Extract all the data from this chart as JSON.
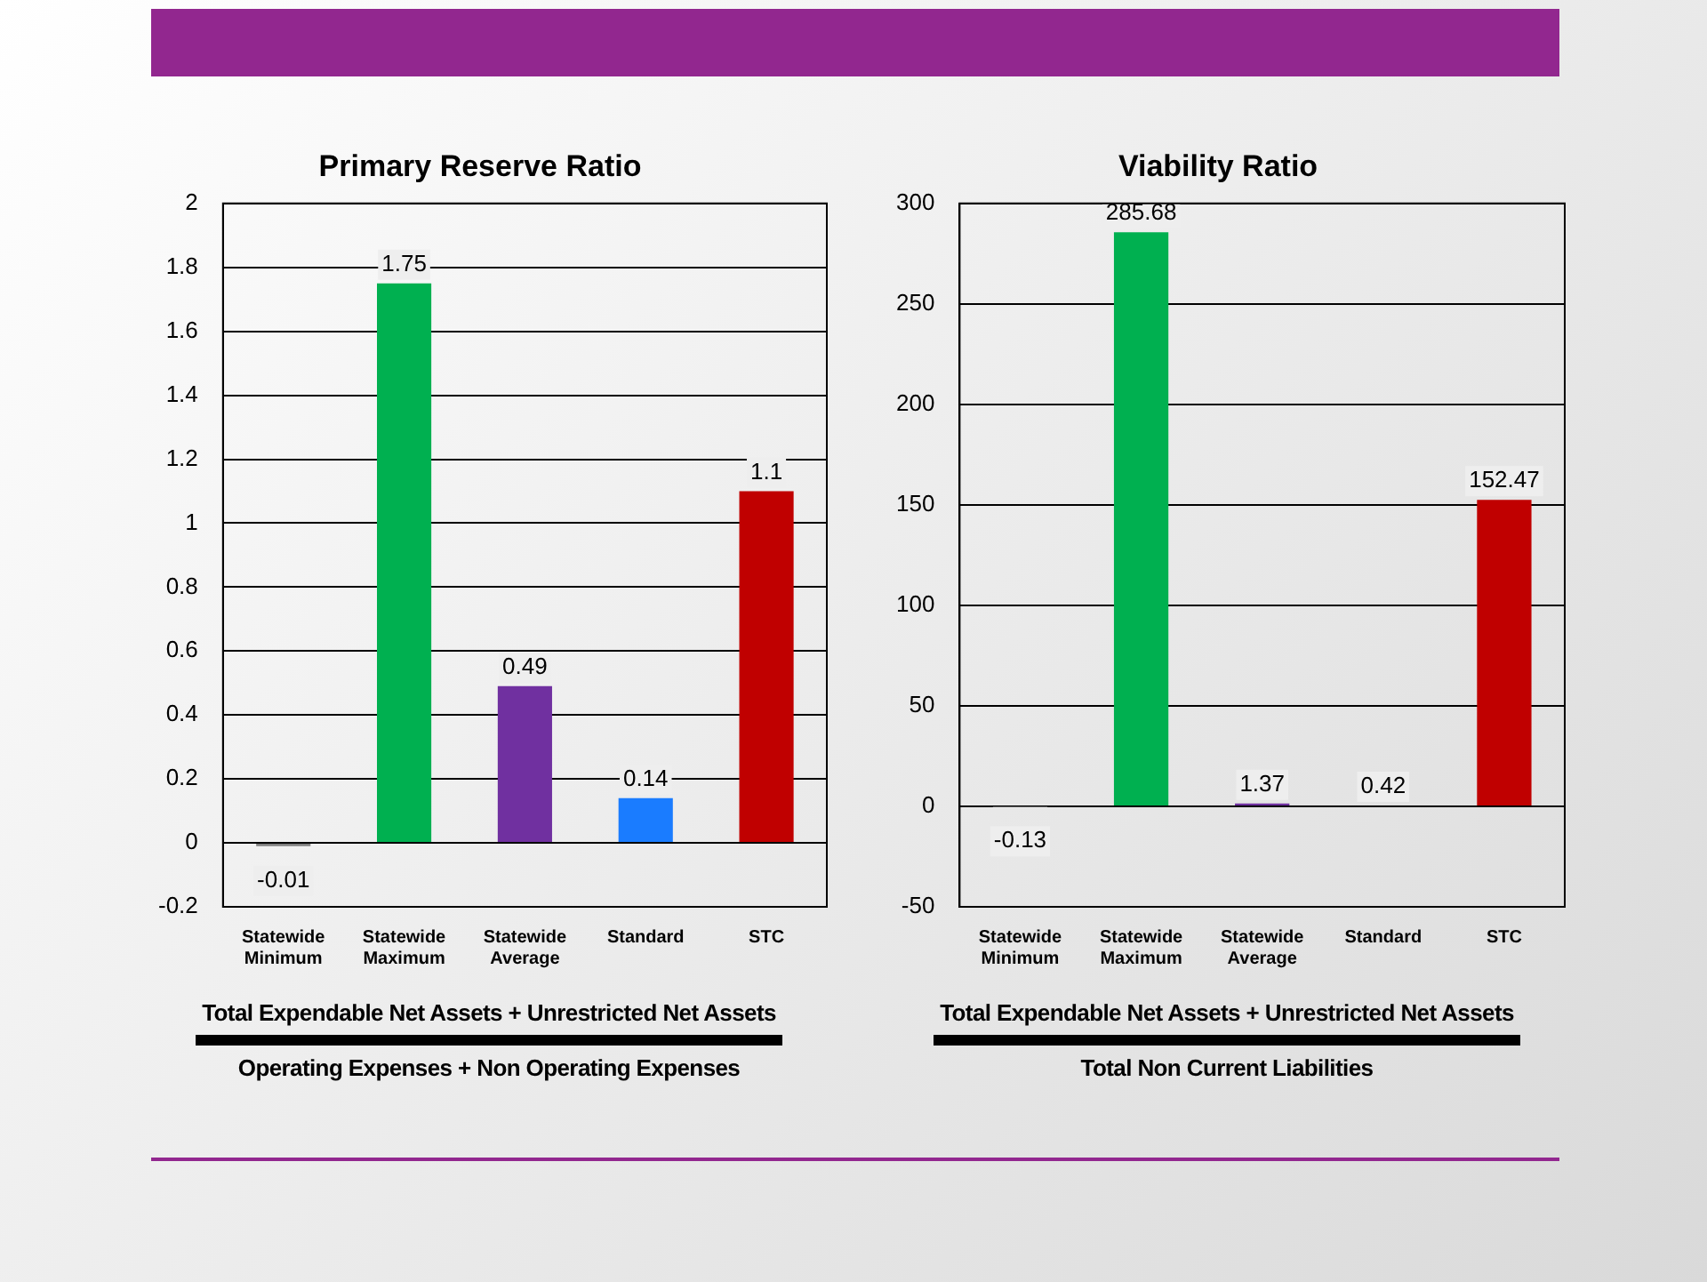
{
  "chart_data": [
    {
      "type": "bar",
      "title": "Primary Reserve Ratio",
      "categories": [
        "Statewide Minimum",
        "Statewide Maximum",
        "Statewide Average",
        "Standard",
        "STC"
      ],
      "values": [
        -0.01,
        1.75,
        0.49,
        0.14,
        1.1
      ],
      "colors": [
        "#7f7f7f",
        "#00b050",
        "#7030a0",
        "#1a7cff",
        "#c00000"
      ],
      "ylim": [
        -0.2,
        2
      ],
      "yticks": [
        -0.2,
        0,
        0.2,
        0.4,
        0.6,
        0.8,
        1,
        1.2,
        1.4,
        1.6,
        1.8,
        2
      ],
      "grid": "y",
      "data_labels": true,
      "legend": false,
      "annotations": [
        "Total Expendable Net Assets + Unrestricted Net Assets",
        "Operating Expenses + Non Operating Expenses"
      ]
    },
    {
      "type": "bar",
      "title": "Viability Ratio",
      "categories": [
        "Statewide Minimum",
        "Statewide Maximum",
        "Statewide Average",
        "Standard",
        "STC"
      ],
      "values": [
        -0.13,
        285.68,
        1.37,
        0.42,
        152.47
      ],
      "colors": [
        "#7f7f7f",
        "#00b050",
        "#7030a0",
        "#1a7cff",
        "#c00000"
      ],
      "ylim": [
        -50,
        300
      ],
      "yticks": [
        -50,
        0,
        50,
        100,
        150,
        200,
        250,
        300
      ],
      "grid": "y",
      "data_labels": true,
      "legend": false,
      "annotations": [
        "Total Expendable Net Assets + Unrestricted Net Assets",
        "Total Non Current Liabilities"
      ]
    }
  ]
}
